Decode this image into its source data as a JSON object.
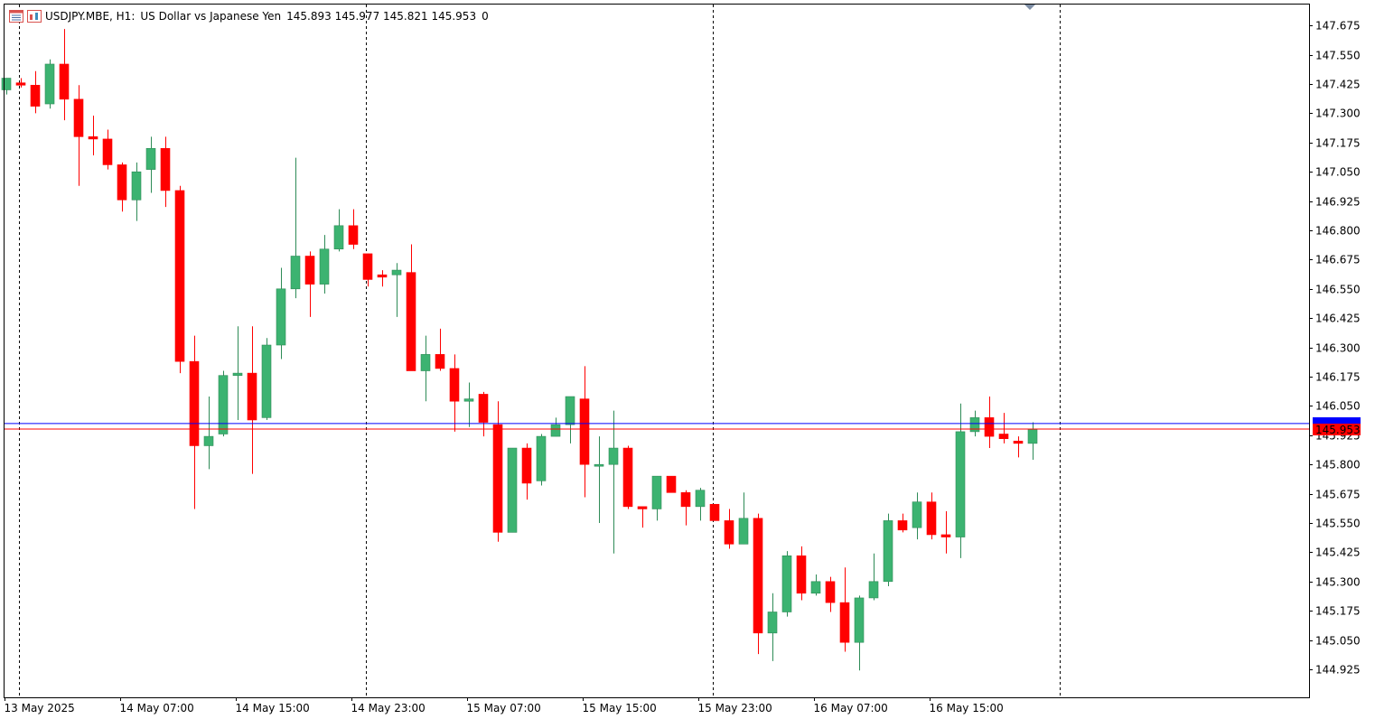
{
  "header": {
    "symbol": "USDJPY.MBE, H1:",
    "description": "US Dollar vs Japanese Yen",
    "ohlc": "145.893 145.977 145.821 145.953",
    "volume": "0",
    "icons": [
      "chart-window-icon",
      "indicator-list-icon"
    ]
  },
  "colors": {
    "bull": "#3CB371",
    "bear": "#FF0000",
    "wick_bull": "#2E8B57",
    "wick_bear": "#FF0000",
    "bid_line": "#FF0000",
    "ask_line": "#0000FF",
    "price_tag_bid": "#FF0000",
    "price_tag_ask": "#0000FF"
  },
  "current_price": {
    "bid_label": "145.953",
    "bid": 145.953,
    "ask": 145.977
  },
  "chart_data": {
    "type": "candlestick",
    "title": "",
    "xlabel": "",
    "ylabel": "",
    "ylim": [
      144.85,
      147.735
    ],
    "grid": false,
    "y_ticks": [
      "147.675",
      "147.550",
      "147.425",
      "147.300",
      "147.175",
      "147.050",
      "146.925",
      "146.800",
      "146.675",
      "146.550",
      "146.425",
      "146.300",
      "146.175",
      "146.050",
      "145.925",
      "145.800",
      "145.675",
      "145.550",
      "145.425",
      "145.300",
      "145.175",
      "145.050",
      "144.925"
    ],
    "x_labels": [
      "13 May 2025",
      "14 May 07:00",
      "14 May 15:00",
      "14 May 23:00",
      "15 May 07:00",
      "15 May 15:00",
      "15 May 23:00",
      "16 May 07:00",
      "16 May 15:00"
    ],
    "x_label_bar_index": [
      0,
      8,
      16,
      24,
      32,
      40,
      48,
      56,
      64
    ],
    "period_separator_bar_index": [
      1,
      25,
      49,
      73
    ],
    "candles": [
      {
        "o": 147.4,
        "h": 147.45,
        "l": 147.38,
        "c": 147.45
      },
      {
        "o": 147.43,
        "h": 147.45,
        "l": 147.41,
        "c": 147.42
      },
      {
        "o": 147.42,
        "h": 147.48,
        "l": 147.3,
        "c": 147.33
      },
      {
        "o": 147.34,
        "h": 147.53,
        "l": 147.32,
        "c": 147.51
      },
      {
        "o": 147.51,
        "h": 147.66,
        "l": 147.27,
        "c": 147.36
      },
      {
        "o": 147.36,
        "h": 147.42,
        "l": 146.99,
        "c": 147.2
      },
      {
        "o": 147.2,
        "h": 147.29,
        "l": 147.12,
        "c": 147.19
      },
      {
        "o": 147.19,
        "h": 147.23,
        "l": 147.06,
        "c": 147.08
      },
      {
        "o": 147.08,
        "h": 147.09,
        "l": 146.88,
        "c": 146.93
      },
      {
        "o": 146.93,
        "h": 147.09,
        "l": 146.84,
        "c": 147.05
      },
      {
        "o": 147.06,
        "h": 147.2,
        "l": 146.96,
        "c": 147.15
      },
      {
        "o": 147.15,
        "h": 147.2,
        "l": 146.9,
        "c": 146.97
      },
      {
        "o": 146.97,
        "h": 146.99,
        "l": 146.19,
        "c": 146.24
      },
      {
        "o": 146.24,
        "h": 146.35,
        "l": 145.61,
        "c": 145.88
      },
      {
        "o": 145.88,
        "h": 146.09,
        "l": 145.78,
        "c": 145.92
      },
      {
        "o": 145.93,
        "h": 146.2,
        "l": 145.92,
        "c": 146.18
      },
      {
        "o": 146.18,
        "h": 146.39,
        "l": 145.99,
        "c": 146.19
      },
      {
        "o": 146.19,
        "h": 146.39,
        "l": 145.76,
        "c": 145.99
      },
      {
        "o": 146.0,
        "h": 146.34,
        "l": 145.99,
        "c": 146.31
      },
      {
        "o": 146.31,
        "h": 146.64,
        "l": 146.25,
        "c": 146.55
      },
      {
        "o": 146.55,
        "h": 147.11,
        "l": 146.51,
        "c": 146.69
      },
      {
        "o": 146.69,
        "h": 146.71,
        "l": 146.43,
        "c": 146.57
      },
      {
        "o": 146.57,
        "h": 146.78,
        "l": 146.53,
        "c": 146.72
      },
      {
        "o": 146.72,
        "h": 146.89,
        "l": 146.71,
        "c": 146.82
      },
      {
        "o": 146.82,
        "h": 146.89,
        "l": 146.72,
        "c": 146.74
      },
      {
        "o": 146.7,
        "h": 146.7,
        "l": 146.56,
        "c": 146.59
      },
      {
        "o": 146.61,
        "h": 146.63,
        "l": 146.56,
        "c": 146.6
      },
      {
        "o": 146.61,
        "h": 146.66,
        "l": 146.43,
        "c": 146.63
      },
      {
        "o": 146.62,
        "h": 146.74,
        "l": 146.2,
        "c": 146.2
      },
      {
        "o": 146.2,
        "h": 146.35,
        "l": 146.07,
        "c": 146.27
      },
      {
        "o": 146.27,
        "h": 146.38,
        "l": 146.2,
        "c": 146.21
      },
      {
        "o": 146.21,
        "h": 146.27,
        "l": 145.94,
        "c": 146.07
      },
      {
        "o": 146.07,
        "h": 146.15,
        "l": 145.96,
        "c": 146.08
      },
      {
        "o": 146.1,
        "h": 146.11,
        "l": 145.92,
        "c": 145.98
      },
      {
        "o": 145.97,
        "h": 146.07,
        "l": 145.47,
        "c": 145.51
      },
      {
        "o": 145.51,
        "h": 145.87,
        "l": 145.51,
        "c": 145.87
      },
      {
        "o": 145.87,
        "h": 145.89,
        "l": 145.65,
        "c": 145.72
      },
      {
        "o": 145.73,
        "h": 145.93,
        "l": 145.71,
        "c": 145.92
      },
      {
        "o": 145.92,
        "h": 146.0,
        "l": 145.92,
        "c": 145.97
      },
      {
        "o": 145.97,
        "h": 146.09,
        "l": 145.89,
        "c": 146.09
      },
      {
        "o": 146.08,
        "h": 146.22,
        "l": 145.66,
        "c": 145.8
      },
      {
        "o": 145.8,
        "h": 145.92,
        "l": 145.55,
        "c": 145.8
      },
      {
        "o": 145.8,
        "h": 146.03,
        "l": 145.42,
        "c": 145.87
      },
      {
        "o": 145.87,
        "h": 145.88,
        "l": 145.61,
        "c": 145.62
      },
      {
        "o": 145.62,
        "h": 145.62,
        "l": 145.53,
        "c": 145.61
      },
      {
        "o": 145.61,
        "h": 145.75,
        "l": 145.56,
        "c": 145.75
      },
      {
        "o": 145.75,
        "h": 145.75,
        "l": 145.68,
        "c": 145.68
      },
      {
        "o": 145.68,
        "h": 145.69,
        "l": 145.54,
        "c": 145.62
      },
      {
        "o": 145.62,
        "h": 145.7,
        "l": 145.56,
        "c": 145.69
      },
      {
        "o": 145.63,
        "h": 145.63,
        "l": 145.56,
        "c": 145.56
      },
      {
        "o": 145.56,
        "h": 145.61,
        "l": 145.44,
        "c": 145.46
      },
      {
        "o": 145.46,
        "h": 145.68,
        "l": 145.46,
        "c": 145.57
      },
      {
        "o": 145.57,
        "h": 145.59,
        "l": 144.99,
        "c": 145.08
      },
      {
        "o": 145.08,
        "h": 145.25,
        "l": 144.96,
        "c": 145.17
      },
      {
        "o": 145.17,
        "h": 145.43,
        "l": 145.15,
        "c": 145.41
      },
      {
        "o": 145.41,
        "h": 145.45,
        "l": 145.22,
        "c": 145.25
      },
      {
        "o": 145.25,
        "h": 145.33,
        "l": 145.24,
        "c": 145.3
      },
      {
        "o": 145.3,
        "h": 145.32,
        "l": 145.17,
        "c": 145.21
      },
      {
        "o": 145.21,
        "h": 145.36,
        "l": 145.0,
        "c": 145.04
      },
      {
        "o": 145.04,
        "h": 145.24,
        "l": 144.92,
        "c": 145.23
      },
      {
        "o": 145.23,
        "h": 145.42,
        "l": 145.22,
        "c": 145.3
      },
      {
        "o": 145.3,
        "h": 145.59,
        "l": 145.28,
        "c": 145.56
      },
      {
        "o": 145.56,
        "h": 145.59,
        "l": 145.51,
        "c": 145.52
      },
      {
        "o": 145.53,
        "h": 145.68,
        "l": 145.48,
        "c": 145.64
      },
      {
        "o": 145.64,
        "h": 145.68,
        "l": 145.48,
        "c": 145.5
      },
      {
        "o": 145.5,
        "h": 145.6,
        "l": 145.42,
        "c": 145.49
      },
      {
        "o": 145.49,
        "h": 146.06,
        "l": 145.4,
        "c": 145.94
      },
      {
        "o": 145.94,
        "h": 146.03,
        "l": 145.92,
        "c": 146.0
      },
      {
        "o": 146.0,
        "h": 146.09,
        "l": 145.87,
        "c": 145.92
      },
      {
        "o": 145.93,
        "h": 146.02,
        "l": 145.89,
        "c": 145.91
      },
      {
        "o": 145.9,
        "h": 145.92,
        "l": 145.83,
        "c": 145.89
      },
      {
        "o": 145.89,
        "h": 145.98,
        "l": 145.82,
        "c": 145.95
      }
    ]
  }
}
